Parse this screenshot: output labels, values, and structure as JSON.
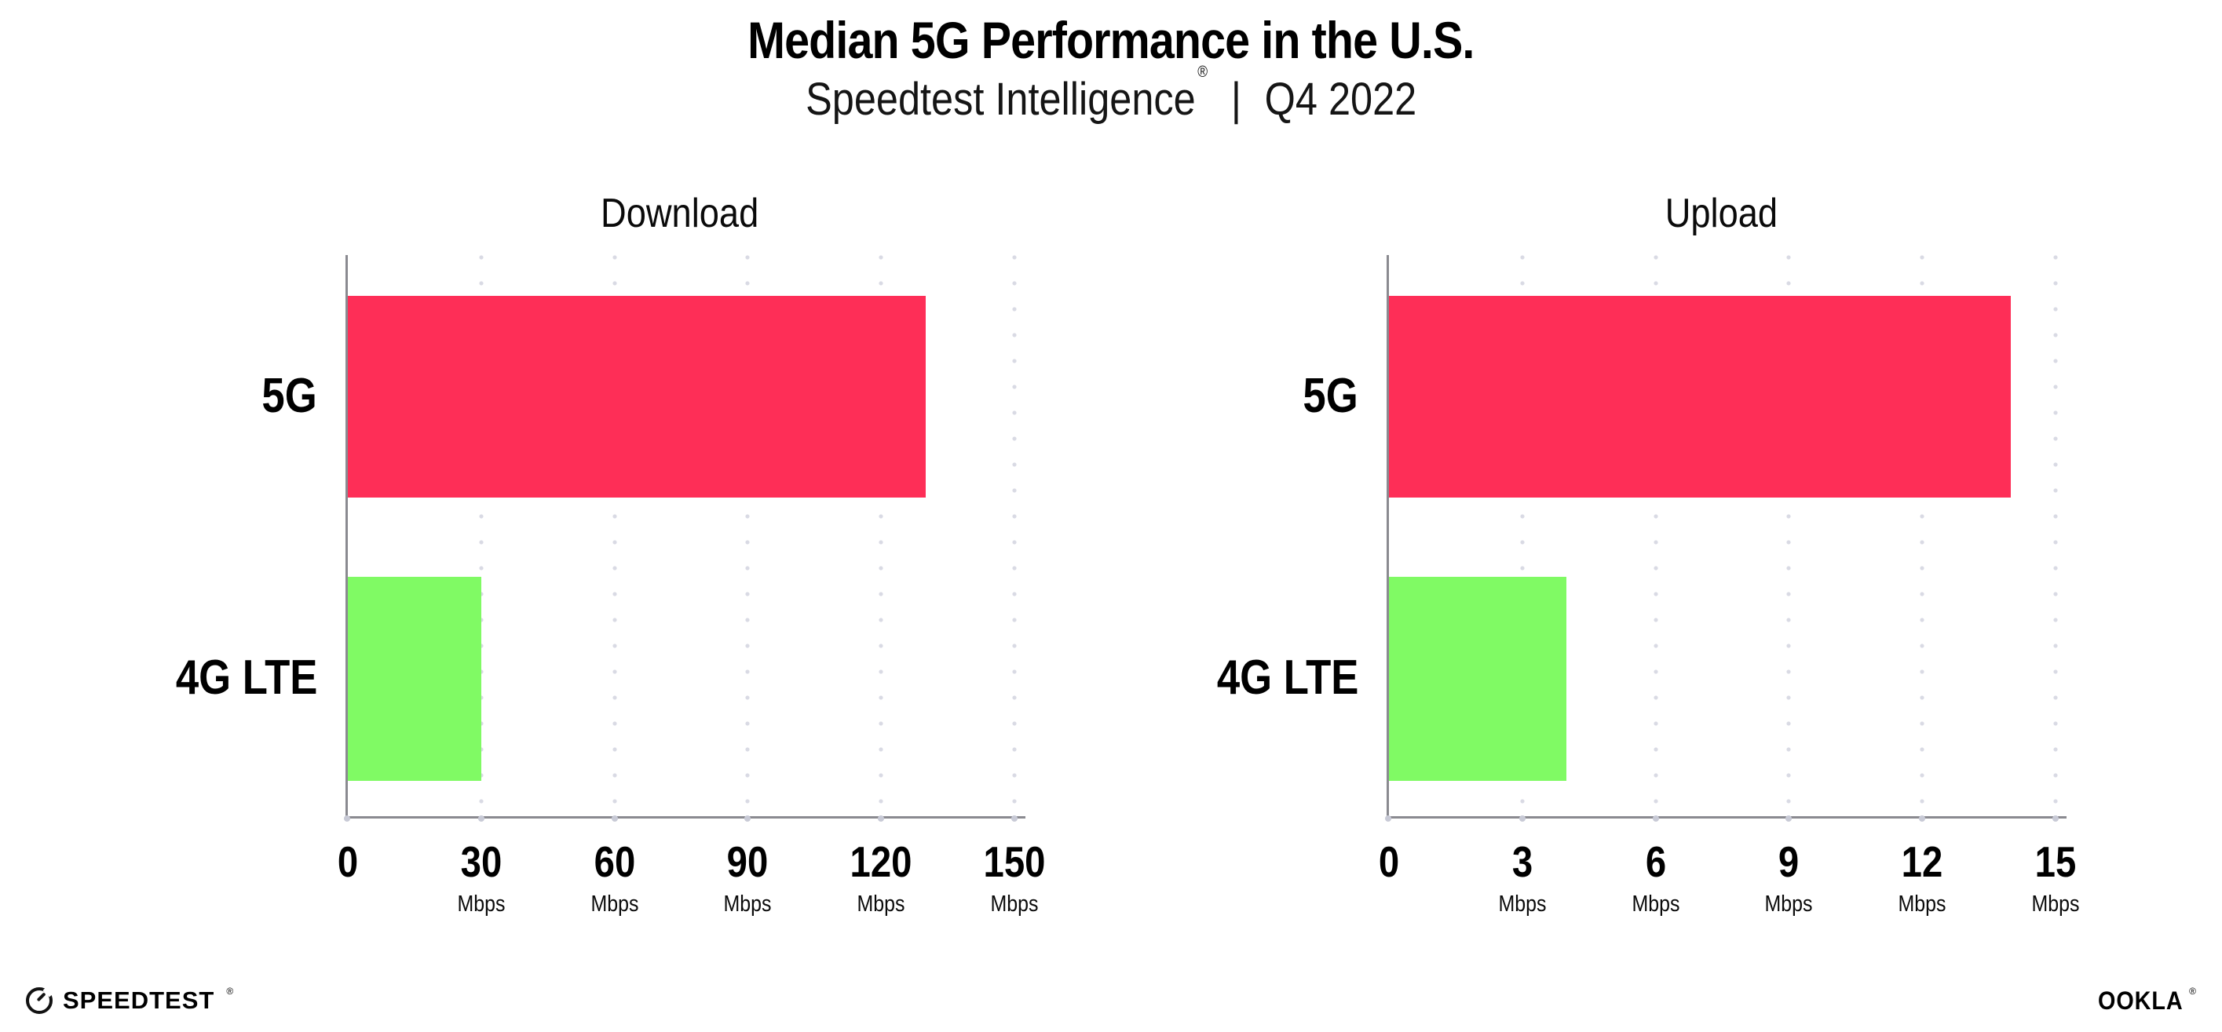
{
  "title": "Median 5G Performance in the U.S.",
  "subtitle": {
    "brand": "Speedtest Intelligence",
    "registered_mark": "®",
    "separator": "|",
    "period": "Q4 2022"
  },
  "chart_data": [
    {
      "type": "bar",
      "orientation": "horizontal",
      "title": "Download",
      "unit": "Mbps",
      "categories": [
        "5G",
        "4G LTE"
      ],
      "values": [
        130,
        30
      ],
      "xlim": [
        0,
        150
      ],
      "xticks": [
        0,
        30,
        60,
        90,
        120,
        150
      ],
      "bar_colors": [
        "#FE2E57",
        "#80FA64"
      ],
      "grid": "vertical-dotted",
      "legend": "none"
    },
    {
      "type": "bar",
      "orientation": "horizontal",
      "title": "Upload",
      "unit": "Mbps",
      "categories": [
        "5G",
        "4G LTE"
      ],
      "values": [
        14,
        4
      ],
      "xlim": [
        0,
        15
      ],
      "xticks": [
        0,
        3,
        6,
        9,
        12,
        15
      ],
      "bar_colors": [
        "#FE2E57",
        "#80FA64"
      ],
      "grid": "vertical-dotted",
      "legend": "none"
    }
  ],
  "colors": {
    "bar_5g": "#FE2E57",
    "bar_4g_lte": "#80FA64",
    "axis_line": "#8A8A90",
    "grid_dot": "#D9DAE4",
    "tick_dot": "#C8CAD6",
    "text": "#000000"
  },
  "footer": {
    "speedtest_label": "SPEEDTEST",
    "speedtest_mark": "®",
    "ookla_label": "OOKLA",
    "ookla_mark": "®"
  }
}
